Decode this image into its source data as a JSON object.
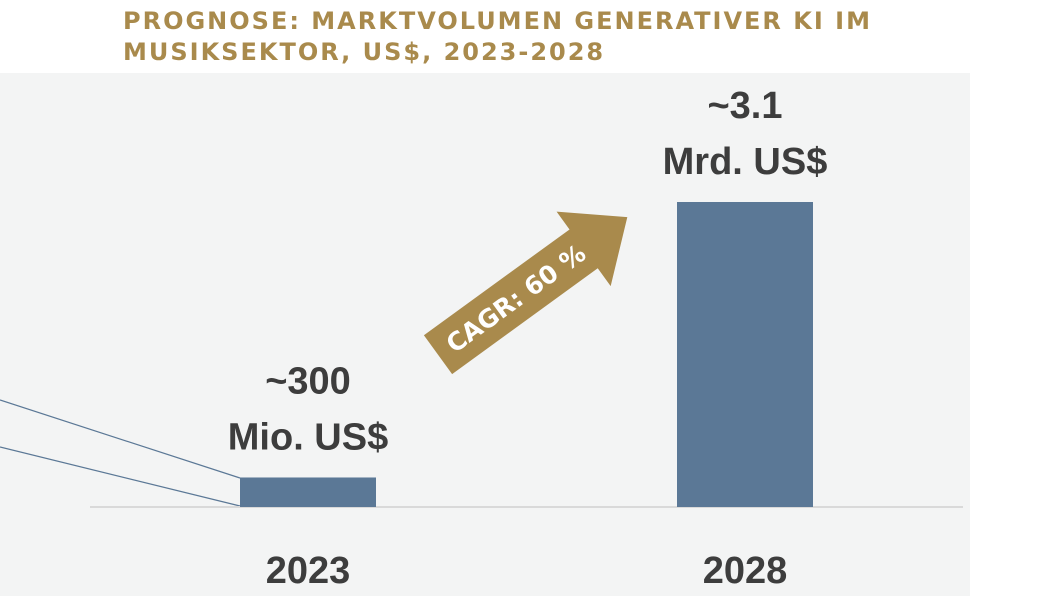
{
  "title_lines": [
    "PROGNOSE: MARKTVOLUMEN GENERATIVER KI IM",
    "MUSIKSEKTOR, US$, 2023-2028"
  ],
  "annotation": {
    "cagr_label": "CAGR: 60 %"
  },
  "colors": {
    "bar": "#5b7896",
    "accent": "#a98a4c",
    "panel": "#f3f4f4",
    "text": "#3d3d3d"
  },
  "chart_data": {
    "type": "bar",
    "title": "PROGNOSE: MARKTVOLUMEN GENERATIVER KI IM MUSIKSEKTOR, US$, 2023-2028",
    "unit": "US$",
    "categories": [
      "2023",
      "2028"
    ],
    "values": [
      0.3,
      3.1
    ],
    "value_labels": [
      [
        "~300",
        "Mio. US$"
      ],
      [
        "~3.1",
        "Mrd. US$"
      ]
    ],
    "ylim": [
      0,
      3.1
    ],
    "grid": false,
    "legend": "none",
    "annotations": [
      "CAGR: 60 %"
    ]
  }
}
